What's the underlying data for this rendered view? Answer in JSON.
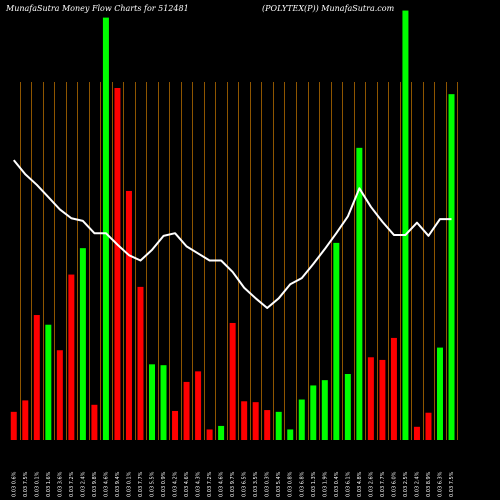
{
  "header": {
    "left": "MunafaSutra  Money Flow  Charts for 512481",
    "right": "(POLYTEX(P))  MunafaSutra.com"
  },
  "colors": {
    "background": "#000000",
    "gridline": "#b36b00",
    "up_bar": "#00ff00",
    "down_bar": "#ff0000",
    "line": "#ffffff"
  },
  "chart_data": {
    "type": "bar",
    "title": "",
    "series": [
      {
        "name": "",
        "kind": "bar",
        "values": [
          32,
          45,
          142,
          131,
          102,
          188,
          218,
          40,
          480,
          400,
          283,
          174,
          86,
          85,
          33,
          66,
          78,
          12,
          16,
          133,
          44,
          43,
          34,
          32,
          12,
          46,
          62,
          68,
          224,
          75,
          332,
          94,
          91,
          116,
          488,
          15,
          31,
          105,
          393
        ]
      },
      {
        "name": "",
        "kind": "line",
        "values": [
          318,
          302,
          290,
          276,
          262,
          252,
          249,
          235,
          235,
          222,
          210,
          204,
          216,
          232,
          235,
          220,
          212,
          204,
          204,
          191,
          173,
          161,
          150,
          161,
          177,
          184,
          200,
          217,
          235,
          254,
          286,
          265,
          248,
          233,
          233,
          247,
          232,
          251,
          251
        ]
      }
    ],
    "directions": [
      "down",
      "down",
      "down",
      "up",
      "down",
      "down",
      "up",
      "down",
      "up",
      "down",
      "down",
      "down",
      "up",
      "up",
      "down",
      "down",
      "down",
      "down",
      "up",
      "down",
      "down",
      "down",
      "down",
      "up",
      "up",
      "up",
      "up",
      "up",
      "up",
      "up",
      "up",
      "down",
      "down",
      "down",
      "up",
      "down",
      "down",
      "up",
      "up"
    ],
    "x_tick_labels": [
      "0.03 0.6%",
      "0.03 7.5%",
      "0.03 0.1%",
      "0.03 1.6%",
      "0.03 3.6%",
      "0.03 7.2%",
      "0.03 2.4%",
      "0.03 9.8%",
      "0.03 4.6%",
      "0.03 9.4%",
      "0.03 0.1%",
      "0.03 7.7%",
      "0.03 5.5%",
      "0.03 0.9%",
      "0.03 4.2%",
      "0.03 4.6%",
      "0.03 4.3%",
      "0.03 7.2%",
      "0.03 4.6%",
      "0.03 9.7%",
      "0.03 6.5%",
      "0.03 3.5%",
      "0.03 0.3%",
      "0.03 5.4%",
      "0.03 0.8%",
      "0.03 6.8%",
      "0.03 1.3%",
      "0.03 1.9%",
      "0.03 0.4%",
      "0.03 6.1%",
      "0.03 4.8%",
      "0.03 2.6%",
      "0.03 7.7%",
      "0.03 6.0%",
      "0.03 2.5%",
      "0.03 2.4%",
      "0.03 8.9%",
      "0.03 6.3%",
      "0.03 7.5%"
    ],
    "y_range": [
      0,
      500
    ],
    "grid": true
  }
}
